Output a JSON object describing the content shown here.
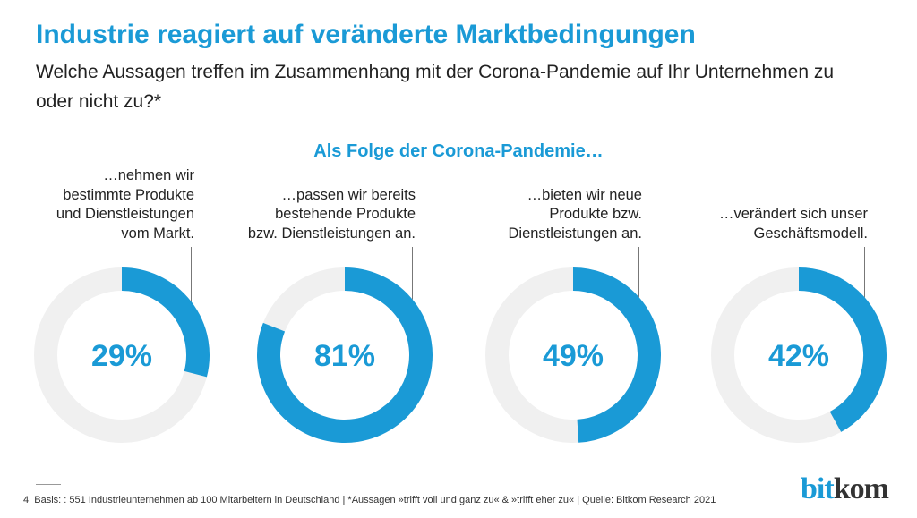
{
  "title": "Industrie reagiert auf veränderte Marktbedingungen",
  "subtitle": "Welche Aussagen treffen im Zusammenhang mit der Corona-Pandemie auf Ihr Unternehmen zu oder nicht zu?*",
  "colors": {
    "accent": "#1a9ad6",
    "track": "#f0f0f0"
  },
  "chart_data": {
    "type": "pie",
    "title": "Als Folge der Corona-Pandemie…",
    "items": [
      {
        "label": "…nehmen wir bestimmte Produkte und Dienstleistungen vom Markt.",
        "lines": [
          "…nehmen wir",
          "bestimmte Produkte",
          "und Dienstleistungen",
          "vom Markt."
        ],
        "value": 29,
        "display": "29%"
      },
      {
        "label": "…passen wir bereits bestehende Produkte bzw. Dienstleistungen an.",
        "lines": [
          "…passen wir bereits",
          "bestehende Produkte",
          "bzw. Dienstleistungen an."
        ],
        "value": 81,
        "display": "81%"
      },
      {
        "label": "…bieten wir neue Produkte bzw. Dienstleistungen an.",
        "lines": [
          "…bieten wir neue",
          "Produkte bzw.",
          "Dienstleistungen an."
        ],
        "value": 49,
        "display": "49%"
      },
      {
        "label": "…verändert sich unser Geschäftsmodell.",
        "lines": [
          "…verändert sich unser",
          "Geschäftsmodell."
        ],
        "value": 42,
        "display": "42%"
      }
    ]
  },
  "footer": {
    "page": "4",
    "text": "Basis: : 551 Industrieunternehmen ab 100 Mitarbeitern in Deutschland | *Aussagen »trifft voll und ganz zu« & »trifft eher zu« | Quelle: Bitkom Research 2021"
  },
  "logo": {
    "part1": "bit",
    "part2": "kom"
  }
}
